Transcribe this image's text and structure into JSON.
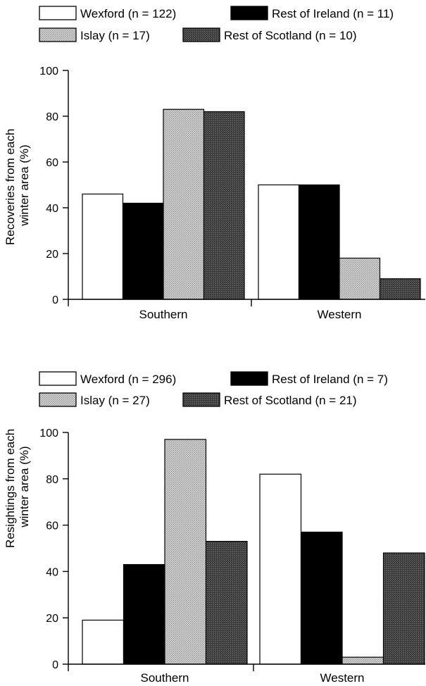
{
  "chart_data": [
    {
      "type": "bar",
      "categories": [
        "Southern",
        "Western"
      ],
      "ylabel": [
        "Recoveries from each",
        "winter area (%)"
      ],
      "ylim": [
        0,
        100
      ],
      "yticks": [
        "0",
        "20",
        "40",
        "60",
        "80",
        "100"
      ],
      "legend_position": "top",
      "series": [
        {
          "name": "Wexford (n = 122)",
          "values": [
            46,
            50
          ]
        },
        {
          "name": "Rest of Ireland (n = 11)",
          "values": [
            42,
            50
          ]
        },
        {
          "name": "Islay (n = 17)",
          "values": [
            83,
            18
          ]
        },
        {
          "name": "Rest of Scotland (n = 10)",
          "values": [
            82,
            9
          ]
        }
      ]
    },
    {
      "type": "bar",
      "categories": [
        "Southern",
        "Western"
      ],
      "ylabel": [
        "Resightings from each",
        "winter area (%)"
      ],
      "ylim": [
        0,
        100
      ],
      "yticks": [
        "0",
        "20",
        "40",
        "60",
        "80",
        "100"
      ],
      "legend_position": "top",
      "series": [
        {
          "name": "Wexford (n = 296)",
          "values": [
            19,
            82
          ]
        },
        {
          "name": "Rest of Ireland (n = 7)",
          "values": [
            43,
            57
          ]
        },
        {
          "name": "Islay (n = 27)",
          "values": [
            97,
            3
          ]
        },
        {
          "name": "Rest of Scotland (n = 21)",
          "values": [
            53,
            48
          ]
        }
      ]
    }
  ],
  "colors": {
    "wexford_fill": "#ffffff",
    "rest_of_ireland_fill": "#000000",
    "islay_fill": "#bdbdbd",
    "rest_of_scotland_fill": "#4a4a4a",
    "axis": "#000000"
  }
}
